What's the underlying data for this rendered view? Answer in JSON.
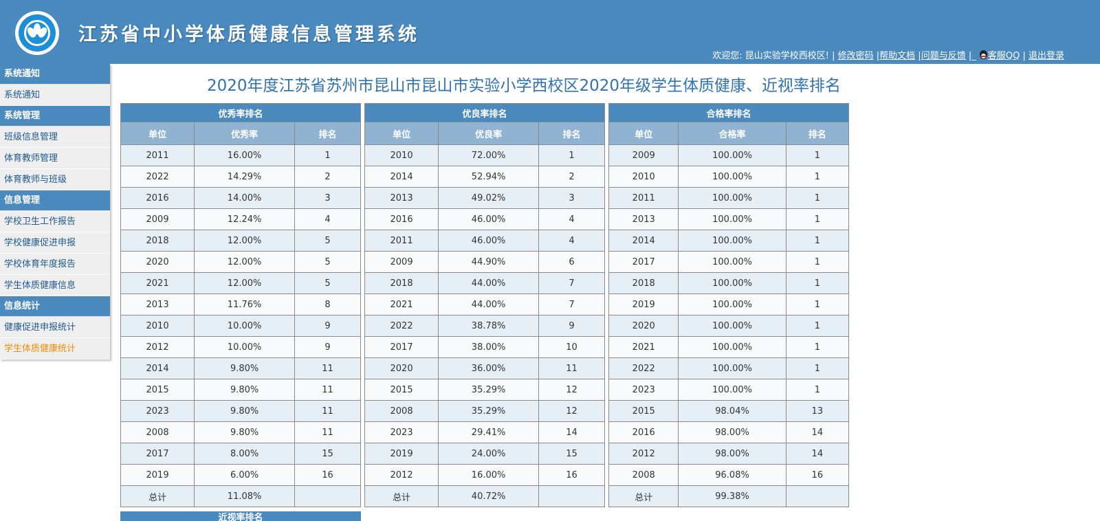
{
  "header": {
    "title": "江苏省中小学体质健康信息管理系统",
    "welcome": "欢迎您: 昆山实验学校西校区!",
    "links": {
      "change_password": "修改密码",
      "help_docs": "帮助文档",
      "feedback": "问题与反馈",
      "qq": "客服QQ",
      "logout": "退出登录"
    }
  },
  "sidebar": {
    "groups": [
      {
        "title": "系统通知",
        "items": [
          "系统通知"
        ]
      },
      {
        "title": "系统管理",
        "items": [
          "班级信息管理",
          "体育教师管理",
          "体育教师与班级"
        ]
      },
      {
        "title": "信息管理",
        "items": [
          "学校卫生工作报告",
          "学校健康促进申报",
          "学校体育年度报告",
          "学生体质健康信息"
        ]
      },
      {
        "title": "信息统计",
        "items": [
          "健康促进申报统计",
          "学生体质健康统计"
        ]
      }
    ],
    "active_item": "学生体质健康统计"
  },
  "page_title": "2020年度江苏省苏州市昆山市昆山市实验小学西校区2020年级学生体质健康、近视率排名",
  "tables": [
    {
      "title": "优秀率排名",
      "columns": [
        "单位",
        "优秀率",
        "排名"
      ],
      "rows": [
        [
          "2011",
          "16.00%",
          "1"
        ],
        [
          "2022",
          "14.29%",
          "2"
        ],
        [
          "2016",
          "14.00%",
          "3"
        ],
        [
          "2009",
          "12.24%",
          "4"
        ],
        [
          "2018",
          "12.00%",
          "5"
        ],
        [
          "2020",
          "12.00%",
          "5"
        ],
        [
          "2021",
          "12.00%",
          "5"
        ],
        [
          "2013",
          "11.76%",
          "8"
        ],
        [
          "2010",
          "10.00%",
          "9"
        ],
        [
          "2012",
          "10.00%",
          "9"
        ],
        [
          "2014",
          "9.80%",
          "11"
        ],
        [
          "2015",
          "9.80%",
          "11"
        ],
        [
          "2023",
          "9.80%",
          "11"
        ],
        [
          "2008",
          "9.80%",
          "11"
        ],
        [
          "2017",
          "8.00%",
          "15"
        ],
        [
          "2019",
          "6.00%",
          "16"
        ]
      ],
      "total": [
        "总计",
        "11.08%",
        ""
      ]
    },
    {
      "title": "优良率排名",
      "columns": [
        "单位",
        "优良率",
        "排名"
      ],
      "rows": [
        [
          "2010",
          "72.00%",
          "1"
        ],
        [
          "2014",
          "52.94%",
          "2"
        ],
        [
          "2013",
          "49.02%",
          "3"
        ],
        [
          "2016",
          "46.00%",
          "4"
        ],
        [
          "2011",
          "46.00%",
          "4"
        ],
        [
          "2009",
          "44.90%",
          "6"
        ],
        [
          "2018",
          "44.00%",
          "7"
        ],
        [
          "2021",
          "44.00%",
          "7"
        ],
        [
          "2022",
          "38.78%",
          "9"
        ],
        [
          "2017",
          "38.00%",
          "10"
        ],
        [
          "2020",
          "36.00%",
          "11"
        ],
        [
          "2015",
          "35.29%",
          "12"
        ],
        [
          "2008",
          "35.29%",
          "12"
        ],
        [
          "2023",
          "29.41%",
          "14"
        ],
        [
          "2019",
          "24.00%",
          "15"
        ],
        [
          "2012",
          "16.00%",
          "16"
        ]
      ],
      "total": [
        "总计",
        "40.72%",
        ""
      ]
    },
    {
      "title": "合格率排名",
      "columns": [
        "单位",
        "合格率",
        "排名"
      ],
      "rows": [
        [
          "2009",
          "100.00%",
          "1"
        ],
        [
          "2010",
          "100.00%",
          "1"
        ],
        [
          "2011",
          "100.00%",
          "1"
        ],
        [
          "2013",
          "100.00%",
          "1"
        ],
        [
          "2014",
          "100.00%",
          "1"
        ],
        [
          "2017",
          "100.00%",
          "1"
        ],
        [
          "2018",
          "100.00%",
          "1"
        ],
        [
          "2019",
          "100.00%",
          "1"
        ],
        [
          "2020",
          "100.00%",
          "1"
        ],
        [
          "2021",
          "100.00%",
          "1"
        ],
        [
          "2022",
          "100.00%",
          "1"
        ],
        [
          "2023",
          "100.00%",
          "1"
        ],
        [
          "2015",
          "98.04%",
          "13"
        ],
        [
          "2016",
          "98.00%",
          "14"
        ],
        [
          "2012",
          "98.00%",
          "14"
        ],
        [
          "2008",
          "96.08%",
          "16"
        ]
      ],
      "total": [
        "总计",
        "99.38%",
        ""
      ]
    }
  ],
  "next_table_title": "近视率排名",
  "colors": {
    "header_bg": "#4a8abf",
    "column_header_bg": "#8fb3d1",
    "row_odd": "#e6eef6",
    "row_even": "#f8fafc",
    "title_text": "#2f73b2",
    "sidebar_link": "#1f5a90",
    "sidebar_active": "#f08c00"
  },
  "icons": [
    "logo-emblem",
    "qq-penguin-icon"
  ]
}
